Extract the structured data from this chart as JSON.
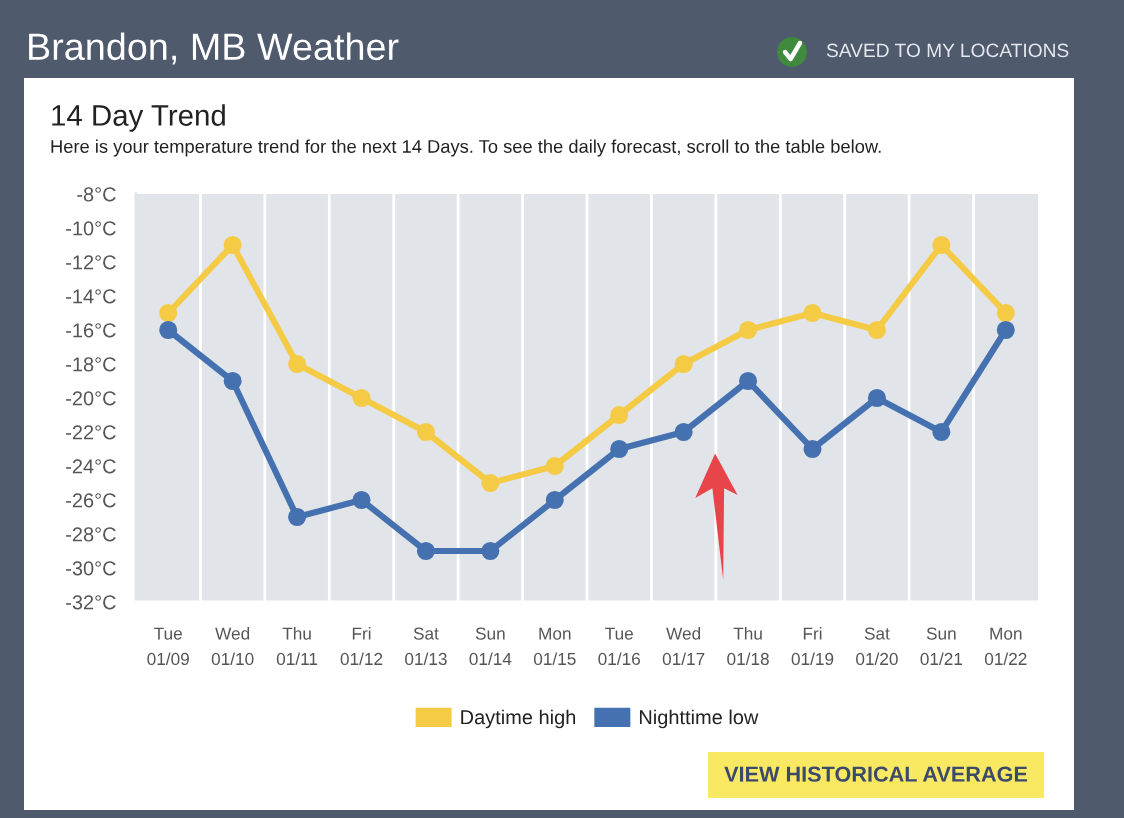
{
  "chart_data": {
    "type": "line",
    "title": "Brandon, MB Weather",
    "subtitle": "14 Day Trend",
    "annotations": [
      "Here is your temperature trend for the next 14 Days. To see the daily forecast, scroll to the table below.",
      "SAVED TO MY LOCATIONS",
      "VIEW HISTORICAL AVERAGE"
    ],
    "categories": [
      "Tue\n01/09",
      "Wed\n01/10",
      "Thu\n01/11",
      "Fri\n01/12",
      "Sat\n01/13",
      "Sun\n01/14",
      "Mon\n01/15",
      "Tue\n01/16",
      "Wed\n01/17",
      "Thu\n01/18",
      "Fri\n01/19",
      "Sat\n01/20",
      "Sun\n01/21",
      "Mon\n01/22"
    ],
    "series": [
      {
        "name": "Daytime high",
        "color": "#f5cb46",
        "values": [
          -15,
          -11,
          -18,
          -20,
          -22,
          -25,
          -24,
          -21,
          -18,
          -16,
          -15,
          -16,
          -11,
          -15
        ]
      },
      {
        "name": "Nighttime low",
        "color": "#4571b0",
        "values": [
          -16,
          -19,
          -27,
          -26,
          -29,
          -29,
          -26,
          -23,
          -22,
          -19,
          -23,
          -20,
          -22,
          -16
        ]
      }
    ],
    "ylim": [
      -32,
      -8
    ],
    "yticks": [
      {
        "value": -32,
        "label": "-32°C"
      },
      {
        "value": -30,
        "label": "-30°C"
      },
      {
        "value": -28,
        "label": "-28°C"
      },
      {
        "value": -26,
        "label": "-26°C"
      },
      {
        "value": -24,
        "label": "-24°C"
      },
      {
        "value": -22,
        "label": "-22°C"
      },
      {
        "value": -20,
        "label": "-20°C"
      },
      {
        "value": -18,
        "label": "-18°C"
      },
      {
        "value": -16,
        "label": "-16°C"
      },
      {
        "value": -14,
        "label": "-14°C"
      },
      {
        "value": -12,
        "label": "-12°C"
      },
      {
        "value": -10,
        "label": "-10°C"
      },
      {
        "value": -8,
        "label": "-8°C"
      }
    ],
    "grid": "x",
    "legend": "bottom",
    "marker": "circle",
    "line_style": "solid"
  }
}
